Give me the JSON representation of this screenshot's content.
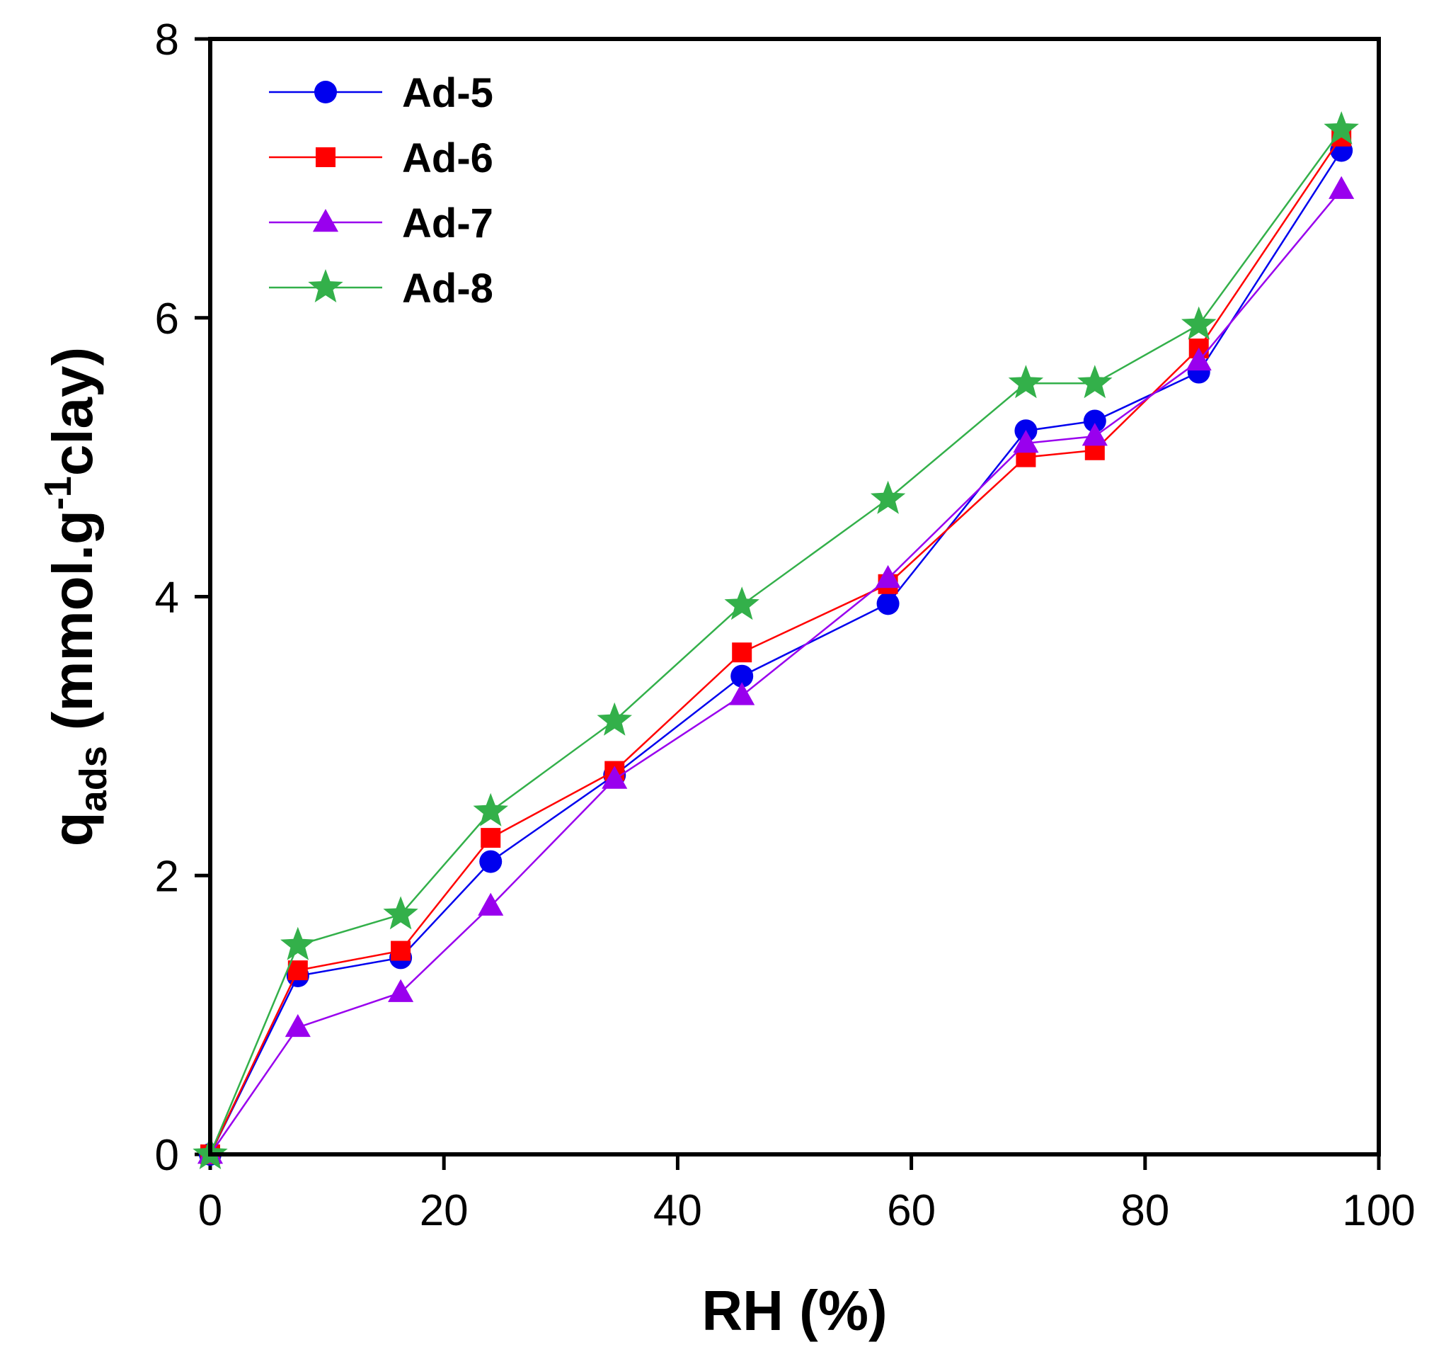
{
  "chart_data": {
    "type": "line",
    "xlabel": "RH (%)",
    "ylabel": {
      "base": "q",
      "base_subscript": "ads",
      "text_before_superscript": "(mmol.g",
      "superscript": "-1",
      "text_after_superscript": "clay)"
    },
    "xlim": [
      0,
      100
    ],
    "ylim": [
      0,
      8
    ],
    "xticks": [
      0,
      20,
      40,
      60,
      80,
      100
    ],
    "yticks": [
      0,
      2,
      4,
      6,
      8
    ],
    "grid": false,
    "legend_position": "top-left",
    "x": [
      0,
      7.5,
      16.3,
      24,
      34.6,
      45.5,
      58,
      69.8,
      75.7,
      84.6,
      96.8
    ],
    "series": [
      {
        "name": "Ad-5",
        "color": "#0000ee",
        "marker": "circle",
        "values": [
          0,
          1.28,
          1.41,
          2.1,
          2.72,
          3.43,
          3.95,
          5.19,
          5.26,
          5.61,
          7.2
        ]
      },
      {
        "name": "Ad-6",
        "color": "#ff0000",
        "marker": "square",
        "values": [
          0,
          1.32,
          1.46,
          2.27,
          2.75,
          3.6,
          4.09,
          5.0,
          5.05,
          5.78,
          7.3
        ]
      },
      {
        "name": "Ad-7",
        "color": "#9900ee",
        "marker": "triangle",
        "values": [
          0,
          0.91,
          1.16,
          1.78,
          2.69,
          3.29,
          4.13,
          5.1,
          5.15,
          5.69,
          6.92
        ]
      },
      {
        "name": "Ad-8",
        "color": "#33b04a",
        "marker": "star",
        "values": [
          0,
          1.5,
          1.72,
          2.46,
          3.11,
          3.94,
          4.7,
          5.53,
          5.53,
          5.95,
          7.35
        ]
      }
    ]
  }
}
